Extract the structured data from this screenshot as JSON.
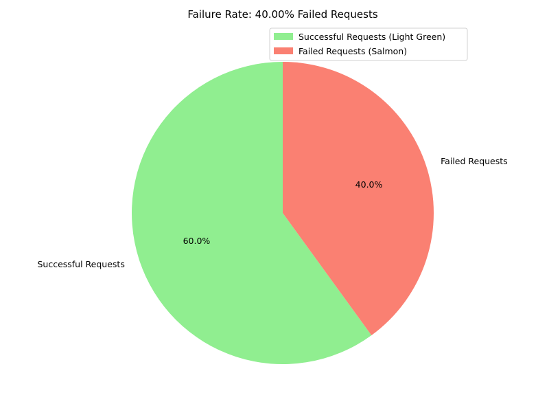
{
  "chart_data": {
    "type": "pie",
    "title": "Failure Rate: 40.00% Failed Requests",
    "categories": [
      "Successful Requests",
      "Failed Requests"
    ],
    "values": [
      60.0,
      40.0
    ],
    "percent_labels": [
      "60.0%",
      "40.0%"
    ],
    "colors": [
      "#90ee90",
      "#fa8072"
    ],
    "legend": {
      "position": "top-right",
      "entries": [
        "Successful Requests (Light Green)",
        "Failed Requests (Salmon)"
      ]
    },
    "start_angle": "top",
    "direction": "counterclockwise"
  }
}
